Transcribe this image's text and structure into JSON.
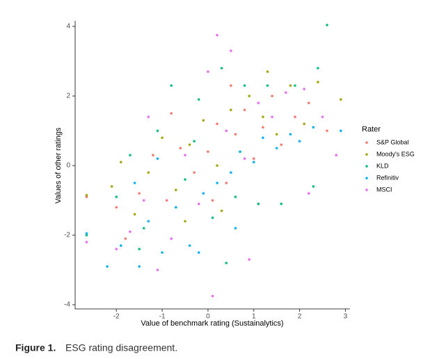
{
  "chart_data": {
    "type": "scatter",
    "x_label": "Value of benchmark rating (Sustainalytics)",
    "y_label": "Values of other ratings",
    "legend_title": "Rater",
    "legend_position": "right",
    "xlim": [
      -2.9,
      3.1
    ],
    "ylim": [
      -4.12,
      4.16
    ],
    "xticks": [
      -2,
      -1,
      0,
      1,
      2,
      3
    ],
    "yticks": [
      -4,
      -2,
      0,
      2,
      4
    ],
    "series": [
      {
        "name": "S&P Global",
        "color": "#F8766D",
        "x": [
          -2.65,
          -2.0,
          -1.5,
          -1.2,
          -0.9,
          -0.6,
          -0.3,
          0,
          0.2,
          0.4,
          0.6,
          0.8,
          1.0,
          1.2,
          1.4,
          1.6,
          1.9,
          2.2,
          -1.8,
          0.1,
          0.5,
          -0.8,
          2.6,
          1.1
        ],
        "values": [
          -0.9,
          -1.2,
          -0.8,
          0.3,
          -1.0,
          0.5,
          -0.2,
          0.4,
          1.2,
          -0.5,
          0.9,
          1.6,
          0.2,
          1.1,
          2.0,
          0.6,
          1.4,
          1.8,
          -2.1,
          -1.0,
          2.3,
          1.5,
          1.0,
          -1.1
        ]
      },
      {
        "name": "Moody's ESG",
        "color": "#A3A500",
        "x": [
          -2.65,
          -2.1,
          -1.6,
          -1.3,
          -1.0,
          -0.7,
          -0.4,
          -0.1,
          0.2,
          0.5,
          0.7,
          0.9,
          1.2,
          1.5,
          1.8,
          2.1,
          2.4,
          2.9,
          0.3,
          -0.5,
          1.3,
          -1.9
        ],
        "values": [
          -0.85,
          -0.6,
          -1.4,
          -0.2,
          0.8,
          -0.7,
          0.6,
          1.3,
          0.0,
          1.6,
          0.4,
          2.0,
          1.4,
          0.9,
          2.3,
          1.2,
          2.4,
          1.9,
          -1.3,
          -1.6,
          2.7,
          0.1
        ]
      },
      {
        "name": "KLD",
        "color": "#00BF7D",
        "x": [
          -2.65,
          -2.0,
          -1.7,
          -1.4,
          -1.1,
          -0.8,
          -0.5,
          -0.2,
          0.1,
          0.3,
          0.6,
          0.8,
          1.1,
          1.3,
          1.6,
          1.9,
          2.3,
          2.6,
          2.4,
          0.4,
          -0.3,
          -1.5
        ],
        "values": [
          -2.0,
          -0.9,
          0.3,
          -1.8,
          1.0,
          2.3,
          -0.4,
          1.9,
          -1.5,
          2.8,
          -0.9,
          2.3,
          -1.1,
          2.3,
          -1.1,
          2.3,
          -0.6,
          4.04,
          2.8,
          -2.8,
          0.7,
          -2.4
        ]
      },
      {
        "name": "Refinitiv",
        "color": "#00B0F6",
        "x": [
          -2.65,
          -2.2,
          -1.9,
          -1.5,
          -1.3,
          -1.0,
          -0.7,
          -0.4,
          -0.1,
          0.2,
          0.5,
          0.7,
          1.0,
          1.2,
          1.5,
          1.8,
          2.0,
          2.3,
          2.9,
          -1.6,
          -0.2,
          0.6,
          -1.1
        ],
        "values": [
          -1.95,
          -2.9,
          -2.3,
          -2.9,
          -1.6,
          -2.5,
          -1.2,
          -2.3,
          -0.8,
          -0.5,
          -0.2,
          0.4,
          0.1,
          0.8,
          0.5,
          0.9,
          0.7,
          1.1,
          1.0,
          -0.5,
          -2.5,
          -1.8,
          0.2
        ]
      },
      {
        "name": "MSCI",
        "color": "#E76BF3",
        "x": [
          -2.65,
          -2.0,
          -1.7,
          -1.4,
          -1.1,
          -0.8,
          -0.5,
          -0.2,
          0,
          0.1,
          0.2,
          0.4,
          0.5,
          0.8,
          1.1,
          1.4,
          1.7,
          2.1,
          2.5,
          2.8,
          -1.3,
          0.9,
          2.2
        ],
        "values": [
          -2.2,
          -2.4,
          -1.9,
          -1.0,
          -3.0,
          -2.1,
          0.3,
          -1.1,
          2.7,
          -3.75,
          3.75,
          1.0,
          3.3,
          0.2,
          1.8,
          1.4,
          2.1,
          2.2,
          1.4,
          0.3,
          1.4,
          -2.7,
          -0.8
        ]
      }
    ]
  },
  "caption": {
    "label": "Figure 1.",
    "text": "ESG rating disagreement."
  }
}
